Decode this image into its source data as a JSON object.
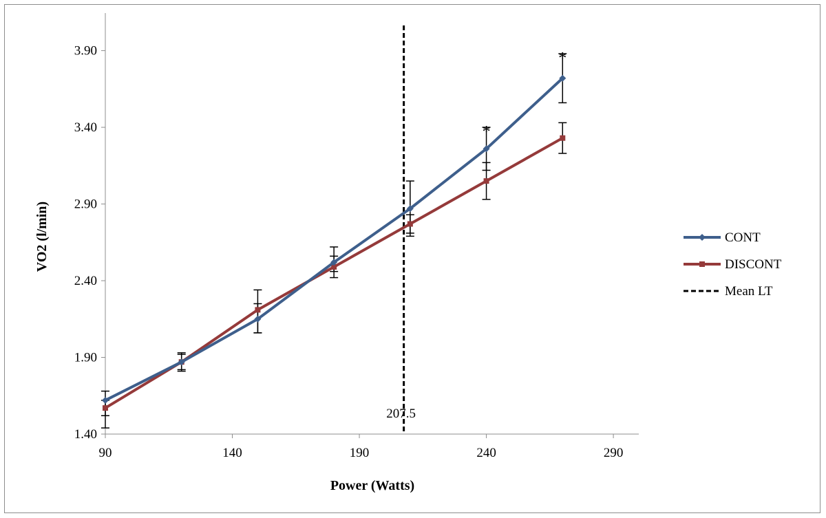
{
  "chart_data": {
    "type": "line",
    "title": "",
    "xlabel": "Power (Watts)",
    "ylabel": "VO2 (l/min)",
    "xlim": [
      90,
      300
    ],
    "ylim": [
      1.4,
      4.1
    ],
    "xticks": [
      90,
      140,
      190,
      240,
      290
    ],
    "xtick_labels": [
      "90",
      "140",
      "190",
      "240",
      "290"
    ],
    "yticks": [
      1.4,
      1.9,
      2.4,
      2.9,
      3.4,
      3.9
    ],
    "ytick_labels": [
      "1.40",
      "1.90",
      "2.40",
      "2.90",
      "3.40",
      "3.90"
    ],
    "grid": false,
    "legend_position": "right",
    "series": [
      {
        "name": "CONT",
        "color": "#3e5f8c",
        "marker": "diamond",
        "x": [
          90,
          120,
          150,
          180,
          210,
          240,
          270
        ],
        "y": [
          1.62,
          1.87,
          2.15,
          2.52,
          2.87,
          3.26,
          3.72
        ],
        "err_low": [
          0.18,
          0.06,
          0.09,
          0.06,
          0.18,
          0.14,
          0.16
        ],
        "err_high": [
          0.06,
          0.06,
          0.19,
          0.1,
          0.18,
          0.14,
          0.16
        ]
      },
      {
        "name": "DISCONT",
        "color": "#953a3a",
        "marker": "square",
        "x": [
          90,
          120,
          150,
          180,
          210,
          240,
          270
        ],
        "y": [
          1.57,
          1.87,
          2.21,
          2.49,
          2.77,
          3.05,
          3.33
        ],
        "err_low": [
          0.05,
          0.05,
          0.15,
          0.07,
          0.06,
          0.12,
          0.1
        ],
        "err_high": [
          0.05,
          0.05,
          0.04,
          0.07,
          0.06,
          0.12,
          0.1
        ]
      }
    ],
    "reference_line": {
      "name": "Mean LT",
      "x": 207.5,
      "style": "dashed",
      "color": "#000000",
      "label": "207.5"
    },
    "annotations": [
      {
        "text": "*",
        "x": 240,
        "y": 3.4
      },
      {
        "text": "*",
        "x": 270,
        "y": 3.88
      }
    ]
  }
}
